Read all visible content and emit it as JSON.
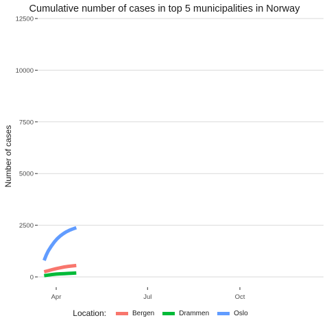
{
  "chart_data": {
    "type": "line",
    "title": "Cumulative number of cases in top 5 municipalities in Norway",
    "xlabel": "",
    "ylabel": "Number of cases",
    "x_ticks": [
      "Apr",
      "Jul",
      "Oct"
    ],
    "x_tick_dates": [
      "2020-04-01",
      "2020-07-01",
      "2020-10-01"
    ],
    "xlim": [
      "2020-03-17",
      "2020-12-31"
    ],
    "y_ticks": [
      0,
      2500,
      5000,
      7500,
      10000,
      12500
    ],
    "ylim": [
      0,
      12500
    ],
    "grid": true,
    "legend": {
      "title": "Location:",
      "position": "bottom"
    },
    "series": [
      {
        "name": "Bergen",
        "color": "#F8766D",
        "x": [
          "2020-03-20",
          "2020-03-24",
          "2020-03-28",
          "2020-04-01",
          "2020-04-05",
          "2020-04-09",
          "2020-04-13",
          "2020-04-17",
          "2020-04-21"
        ],
        "values": [
          250,
          300,
          350,
          400,
          440,
          480,
          510,
          530,
          550
        ]
      },
      {
        "name": "Drammen",
        "color": "#00BA38",
        "x": [
          "2020-03-20",
          "2020-03-24",
          "2020-03-28",
          "2020-04-01",
          "2020-04-05",
          "2020-04-09",
          "2020-04-13",
          "2020-04-17",
          "2020-04-21"
        ],
        "values": [
          60,
          90,
          115,
          135,
          150,
          160,
          170,
          180,
          190
        ]
      },
      {
        "name": "Oslo",
        "color": "#619CFF",
        "x": [
          "2020-03-20",
          "2020-03-22",
          "2020-03-24",
          "2020-03-27",
          "2020-03-30",
          "2020-04-02",
          "2020-04-05",
          "2020-04-08",
          "2020-04-11",
          "2020-04-14",
          "2020-04-17",
          "2020-04-21"
        ],
        "values": [
          800,
          1050,
          1250,
          1480,
          1680,
          1850,
          1980,
          2090,
          2180,
          2250,
          2310,
          2380
        ]
      }
    ]
  }
}
